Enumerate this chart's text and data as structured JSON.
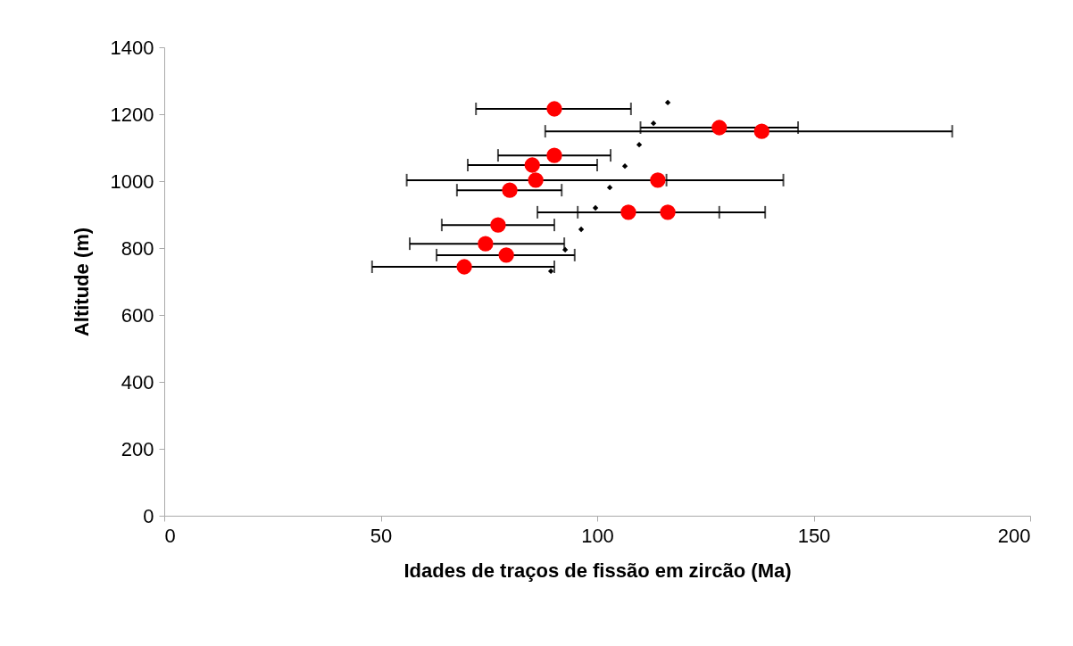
{
  "chart_data": {
    "type": "scatter",
    "xlabel": "Idades de traços de fissão em zircão (Ma)",
    "ylabel": "Altitude (m)",
    "xlim": [
      0,
      200
    ],
    "xticks": [
      0,
      50,
      100,
      150,
      200
    ],
    "ylim": [
      0,
      1400
    ],
    "yticks": [
      0,
      200,
      400,
      600,
      800,
      1000,
      1200,
      1400
    ],
    "series": [
      {
        "color": "#ff0000",
        "marker": "circle",
        "x": [
          90.1,
          128.2,
          138,
          90.1,
          85,
          85.8,
          114,
          79.8,
          107.2,
          116.3,
          77.1,
          74.2,
          79,
          69.3
        ],
        "values": [
          1216,
          1160,
          1149,
          1077,
          1048,
          1003,
          1003,
          973,
          907,
          907,
          869,
          813,
          779,
          744
        ],
        "xerrors": [
          [
            72,
            107.8
          ],
          [
            110,
            146.4
          ],
          [
            88,
            182
          ],
          [
            77.1,
            103.1
          ],
          [
            70.1,
            100
          ],
          [
            56,
            116
          ],
          [
            114,
            143
          ],
          [
            67.6,
            91.8
          ],
          [
            86.2,
            128.2
          ],
          [
            95.5,
            138.8
          ],
          [
            64.1,
            90.1
          ],
          [
            56.7,
            92.4
          ],
          [
            62.9,
            94.8
          ],
          [
            48,
            90.1
          ]
        ]
      },
      {
        "color": "#000000",
        "marker": "diamond",
        "x": [
          116.3,
          113,
          109.7,
          106.4,
          102.9,
          99.6,
          96.3,
          92.6,
          89.3
        ],
        "values": [
          1235,
          1173,
          1109,
          1045,
          981,
          920,
          856,
          795,
          731
        ]
      }
    ]
  }
}
